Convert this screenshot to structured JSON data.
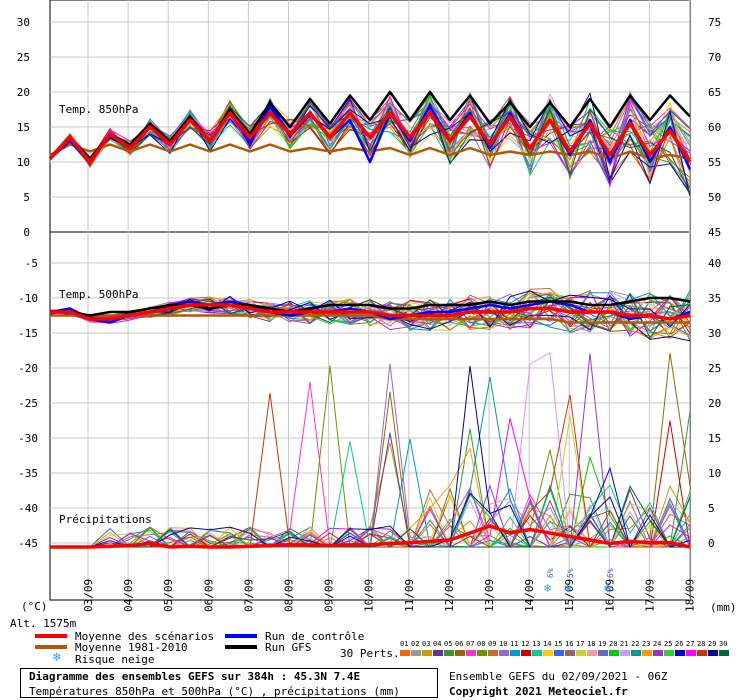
{
  "chart_data": [
    {
      "type": "line",
      "panel_label": "Temp. 850hPa",
      "left_ticks": [
        "30",
        "25",
        "20",
        "15",
        "10",
        "5",
        "0"
      ],
      "right_ticks": [
        "75",
        "70",
        "65",
        "60",
        "55",
        "50",
        "45"
      ],
      "ylim": [
        0,
        33
      ],
      "x": [
        "02/09 06h",
        "02/09 18h",
        "03/09 06h",
        "03/09 18h",
        "04/09 06h",
        "04/09 18h",
        "05/09 06h",
        "05/09 18h",
        "06/09 06h",
        "06/09 18h",
        "07/09 06h",
        "07/09 18h",
        "08/09 06h",
        "08/09 18h",
        "09/09 06h",
        "09/09 18h",
        "10/09 06h",
        "10/09 18h",
        "11/09 06h",
        "11/09 18h",
        "12/09 06h",
        "12/09 18h",
        "13/09 06h",
        "13/09 18h",
        "14/09 06h",
        "14/09 18h",
        "15/09 06h",
        "15/09 18h",
        "16/09 06h",
        "16/09 18h",
        "17/09 06h",
        "17/09 18h",
        "18/09 06h"
      ],
      "series": [
        {
          "name": "Moyenne des scénarios",
          "values": [
            10.5,
            13.5,
            10,
            14,
            12,
            15,
            12.5,
            16,
            13,
            17,
            13.5,
            17,
            14,
            17,
            13.5,
            17,
            13.5,
            17,
            13.5,
            17,
            13,
            16.5,
            12.5,
            16.5,
            12,
            16,
            11.5,
            15.5,
            11,
            15.5,
            11,
            14.5,
            10
          ]
        },
        {
          "name": "Moyenne 1981-2010",
          "values": [
            11,
            12.5,
            11.5,
            12.5,
            11.5,
            12.5,
            11.5,
            12.5,
            11.5,
            12.5,
            11.5,
            12.5,
            11.5,
            12,
            11.5,
            12,
            11.5,
            12,
            11,
            12,
            11,
            12,
            11,
            11.5,
            11,
            11.5,
            11,
            11.5,
            10.5,
            11.5,
            10.5,
            11,
            10.5
          ]
        },
        {
          "name": "Run de contrôle",
          "values": [
            10.5,
            13,
            10,
            14,
            12,
            15,
            12.5,
            16,
            13,
            17,
            13,
            18,
            14,
            17,
            13.5,
            16,
            10,
            17,
            13,
            18,
            13,
            17,
            12,
            17,
            12,
            16,
            11,
            16,
            10,
            16,
            10,
            15,
            9
          ]
        },
        {
          "name": "Run GFS",
          "values": [
            10.5,
            13.5,
            10.5,
            14,
            12.5,
            15.5,
            13,
            16.5,
            13,
            17.5,
            14,
            18.5,
            15,
            19,
            15.5,
            19.5,
            16,
            20,
            16,
            20,
            16,
            19.5,
            15.5,
            18.5,
            15,
            18.5,
            15,
            19,
            15,
            19.5,
            16,
            19.5,
            16.5
          ]
        }
      ]
    },
    {
      "type": "line",
      "panel_label": "Temp. 500hPa",
      "left_ticks": [
        "-5",
        "-10",
        "-15",
        "-20",
        "-25",
        "-30",
        "-35",
        "-40",
        "-45"
      ],
      "right_ticks": [
        "40",
        "35",
        "30",
        "25",
        "20",
        "15",
        "10",
        "5",
        "0"
      ],
      "ylim": [
        -46.5,
        -1.5
      ],
      "x": [
        "02/09 06h",
        "02/09 18h",
        "03/09 06h",
        "03/09 18h",
        "04/09 06h",
        "04/09 18h",
        "05/09 06h",
        "05/09 18h",
        "06/09 06h",
        "06/09 18h",
        "07/09 06h",
        "07/09 18h",
        "08/09 06h",
        "08/09 18h",
        "09/09 06h",
        "09/09 18h",
        "10/09 06h",
        "10/09 18h",
        "11/09 06h",
        "11/09 18h",
        "12/09 06h",
        "12/09 18h",
        "13/09 06h",
        "13/09 18h",
        "14/09 06h",
        "14/09 18h",
        "15/09 06h",
        "15/09 18h",
        "16/09 06h",
        "16/09 18h",
        "17/09 06h",
        "17/09 18h",
        "18/09 06h"
      ],
      "series": [
        {
          "name": "Moyenne des scénarios",
          "values": [
            -12,
            -12,
            -13,
            -13,
            -12.5,
            -12,
            -11.5,
            -11,
            -11,
            -11,
            -11.5,
            -12,
            -12,
            -12,
            -12,
            -12,
            -12,
            -12.5,
            -12.5,
            -12.5,
            -12.5,
            -12,
            -12,
            -12,
            -11.5,
            -11.5,
            -12,
            -12,
            -12,
            -12.5,
            -12.5,
            -13,
            -12.5
          ]
        },
        {
          "name": "Moyenne 1981-2010",
          "values": [
            -12.5,
            -12.5,
            -12.5,
            -12.5,
            -12.5,
            -12.5,
            -12.5,
            -12.5,
            -12.5,
            -12.5,
            -12.5,
            -12.5,
            -12.5,
            -12.5,
            -12.5,
            -12.5,
            -12.5,
            -13,
            -13,
            -13,
            -13,
            -13,
            -13,
            -13,
            -13,
            -13,
            -13.5,
            -13.5,
            -13.5,
            -13.5,
            -13.5,
            -13.5,
            -13.5
          ]
        },
        {
          "name": "Run de contrôle",
          "values": [
            -12,
            -11.5,
            -13,
            -13.5,
            -12.5,
            -12,
            -11,
            -10.5,
            -11,
            -10.5,
            -11,
            -12,
            -12.5,
            -12,
            -12,
            -11.5,
            -12,
            -13,
            -12.5,
            -12,
            -12,
            -11.5,
            -11,
            -11.5,
            -11,
            -10.5,
            -11,
            -12,
            -12,
            -13,
            -12.5,
            -13,
            -12
          ]
        },
        {
          "name": "Run GFS",
          "values": [
            -12,
            -12,
            -12.5,
            -12,
            -12,
            -11.5,
            -11,
            -11,
            -11.5,
            -11,
            -11,
            -11.5,
            -12,
            -11.5,
            -11,
            -11,
            -11,
            -11.5,
            -11.5,
            -11,
            -11,
            -11,
            -10.5,
            -11,
            -10.5,
            -10.5,
            -10.5,
            -11,
            -11,
            -10.5,
            -10,
            -10,
            -10.5
          ]
        }
      ]
    },
    {
      "type": "line",
      "panel_label": "Précipitations",
      "unit": "(mm)",
      "x": [
        "02/09 06h",
        "02/09 18h",
        "03/09 06h",
        "03/09 18h",
        "04/09 06h",
        "04/09 18h",
        "05/09 06h",
        "05/09 18h",
        "06/09 06h",
        "06/09 18h",
        "07/09 06h",
        "07/09 18h",
        "08/09 06h",
        "08/09 18h",
        "09/09 06h",
        "09/09 18h",
        "10/09 06h",
        "10/09 18h",
        "11/09 06h",
        "11/09 18h",
        "12/09 06h",
        "12/09 18h",
        "13/09 06h",
        "13/09 18h",
        "14/09 06h",
        "14/09 18h",
        "15/09 06h",
        "15/09 18h",
        "16/09 06h",
        "16/09 18h",
        "17/09 06h",
        "17/09 18h",
        "18/09 06h"
      ],
      "series": [
        {
          "name": "Moyenne des scénarios",
          "values": [
            0,
            0,
            0,
            0.1,
            0.2,
            0.5,
            0,
            0.1,
            0,
            0,
            0.1,
            0.2,
            0.3,
            0.3,
            0.2,
            0.3,
            0.3,
            0.5,
            0.6,
            0.8,
            1,
            2,
            3,
            2,
            2.5,
            2,
            1.5,
            1,
            0.5,
            0.8,
            0.6,
            0.6,
            0
          ]
        }
      ]
    }
  ],
  "axes": {
    "left_unit": "(°C)",
    "right_unit": "(mm)",
    "altitude": "Alt. 1575m",
    "date_labels": [
      "03/09",
      "04/09",
      "05/09",
      "06/09",
      "07/09",
      "08/09",
      "09/09",
      "10/09",
      "11/09",
      "12/09",
      "13/09",
      "14/09",
      "15/09",
      "16/09",
      "17/09",
      "18/09"
    ]
  },
  "snow_risk": [
    {
      "date": "14/09 18h",
      "label": "6%"
    },
    {
      "date": "15/09 06h",
      "label": "5%"
    },
    {
      "date": "16/09 06h",
      "label": "6%"
    }
  ],
  "legend": {
    "items": [
      {
        "label": "Moyenne des scénarios",
        "color": "#ff0000"
      },
      {
        "label": "Moyenne 1981-2010",
        "color": "#b35900"
      },
      {
        "label": "Run de contrôle",
        "color": "#0000ff"
      },
      {
        "label": "Run GFS",
        "color": "#000000"
      }
    ],
    "snow_label": "Risque neige",
    "perts_label": "30 Perts.",
    "pert_numbers": [
      "01",
      "02",
      "03",
      "04",
      "05",
      "06",
      "07",
      "08",
      "09",
      "10",
      "11",
      "12",
      "13",
      "14",
      "15",
      "16",
      "17",
      "18",
      "19",
      "20",
      "21",
      "22",
      "23",
      "24",
      "25",
      "26",
      "27",
      "28",
      "29",
      "30"
    ],
    "pert_colors": [
      "#ff6600",
      "#999999",
      "#cc9900",
      "#663399",
      "#339933",
      "#996600",
      "#ff33cc",
      "#669900",
      "#cc6633",
      "#9966cc",
      "#0099cc",
      "#cc0000",
      "#00cc99",
      "#ffcc00",
      "#3366ff",
      "#996666",
      "#cccc33",
      "#ff9999",
      "#6666cc",
      "#00cc00",
      "#cc99ff",
      "#009999",
      "#ff9900",
      "#9933cc",
      "#33cc33",
      "#0000cc",
      "#ff00ff",
      "#cc3300",
      "#000099",
      "#006633"
    ]
  },
  "footer": {
    "title": "Diagramme des ensembles GEFS sur 384h : 45.3N 7.4E",
    "subtitle": "Températures 850hPa et 500hPa (°C) , précipitations (mm)",
    "run": "Ensemble GEFS du 02/09/2021 - 06Z",
    "copyright": "Copyright 2021 Meteociel.fr"
  }
}
